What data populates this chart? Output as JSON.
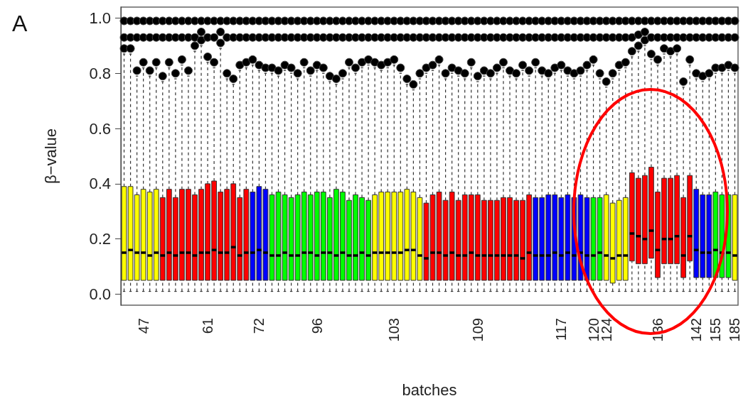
{
  "chart_data": {
    "type": "box",
    "title": "A",
    "ylabel": "β−value",
    "xlabel": "batches",
    "categories": [
      null,
      null,
      null,
      "47",
      null,
      null,
      null,
      null,
      null,
      null,
      null,
      null,
      null,
      "61",
      null,
      null,
      null,
      null,
      null,
      null,
      null,
      "72",
      null,
      null,
      null,
      null,
      null,
      null,
      null,
      null,
      "96",
      null,
      null,
      null,
      null,
      null,
      null,
      null,
      null,
      null,
      null,
      null,
      "103",
      null,
      null,
      null,
      null,
      null,
      null,
      null,
      null,
      null,
      null,
      null,
      null,
      "109",
      null,
      null,
      null,
      null,
      null,
      null,
      null,
      null,
      null,
      null,
      null,
      null,
      "117",
      null,
      null,
      null,
      null,
      "120",
      null,
      "124",
      null,
      null,
      null,
      null,
      null,
      null,
      null,
      "136",
      null,
      null,
      null,
      null,
      null,
      "142",
      null,
      null,
      "155",
      null,
      null,
      "185"
    ],
    "ylim": [
      -0.04,
      1.04
    ],
    "yticks": [
      {
        "value": 0,
        "label": "0.0"
      },
      {
        "value": 0.2,
        "label": "0.2"
      },
      {
        "value": 0.4,
        "label": "0.4"
      },
      {
        "value": 0.6,
        "label": "0.6"
      },
      {
        "value": 0.8,
        "label": "0.8"
      },
      {
        "value": 1,
        "label": "1.0"
      }
    ],
    "grid": false,
    "marker": "circle",
    "colors": [
      "#ffff00",
      "#ffff00",
      "#ffff00",
      "#ffff00",
      "#ffff00",
      "#ffff00",
      "#ff0000",
      "#ff0000",
      "#ff0000",
      "#ff0000",
      "#ff0000",
      "#ff0000",
      "#ff0000",
      "#ff0000",
      "#ff0000",
      "#ff0000",
      "#ff0000",
      "#ff0000",
      "#ff0000",
      "#ff0000",
      "#0000ff",
      "#0000ff",
      "#0000ff",
      "#00ff00",
      "#00ff00",
      "#00ff00",
      "#00ff00",
      "#00ff00",
      "#00ff00",
      "#00ff00",
      "#00ff00",
      "#00ff00",
      "#00ff00",
      "#00ff00",
      "#00ff00",
      "#00ff00",
      "#00ff00",
      "#00ff00",
      "#00ff00",
      "#ffff00",
      "#ffff00",
      "#ffff00",
      "#ffff00",
      "#ffff00",
      "#ffff00",
      "#ffff00",
      "#ffff00",
      "#ff0000",
      "#ff0000",
      "#ff0000",
      "#ff0000",
      "#ff0000",
      "#ff0000",
      "#ff0000",
      "#ff0000",
      "#ff0000",
      "#ff0000",
      "#ff0000",
      "#ff0000",
      "#ff0000",
      "#ff0000",
      "#ff0000",
      "#ff0000",
      "#ff0000",
      "#0000ff",
      "#0000ff",
      "#0000ff",
      "#0000ff",
      "#0000ff",
      "#0000ff",
      "#0000ff",
      "#0000ff",
      "#0000ff",
      "#00ff00",
      "#00ff00",
      "#ffff00",
      "#ffff00",
      "#ffff00",
      "#ffff00",
      "#ff0000",
      "#ff0000",
      "#ff0000",
      "#ff0000",
      "#ff0000",
      "#ff0000",
      "#ff0000",
      "#ff0000",
      "#ff0000",
      "#ff0000",
      "#0000ff",
      "#0000ff",
      "#0000ff",
      "#00ff00",
      "#00ff00",
      "#00ff00",
      "#ffff00"
    ],
    "boxes": [
      {
        "low": 0.01,
        "q1": 0.05,
        "median": 0.15,
        "q3": 0.39,
        "high": 0.87,
        "outliers": [
          0.89,
          0.93,
          0.99
        ]
      },
      {
        "low": 0.01,
        "q1": 0.05,
        "median": 0.16,
        "q3": 0.39,
        "high": 0.87,
        "outliers": [
          0.89,
          0.93,
          0.99
        ]
      },
      {
        "low": 0.01,
        "q1": 0.05,
        "median": 0.15,
        "q3": 0.36,
        "high": 0.79,
        "outliers": [
          0.81,
          0.93,
          0.99
        ]
      },
      {
        "low": 0.01,
        "q1": 0.05,
        "median": 0.15,
        "q3": 0.38,
        "high": 0.82,
        "outliers": [
          0.84,
          0.93,
          0.99
        ]
      },
      {
        "low": 0.01,
        "q1": 0.05,
        "median": 0.14,
        "q3": 0.37,
        "high": 0.79,
        "outliers": [
          0.81,
          0.93,
          0.99
        ]
      },
      {
        "low": 0.01,
        "q1": 0.05,
        "median": 0.15,
        "q3": 0.38,
        "high": 0.82,
        "outliers": [
          0.84,
          0.93,
          0.99
        ]
      },
      {
        "low": 0.01,
        "q1": 0.05,
        "median": 0.14,
        "q3": 0.35,
        "high": 0.77,
        "outliers": [
          0.79,
          0.93,
          0.99
        ]
      },
      {
        "low": 0.01,
        "q1": 0.05,
        "median": 0.15,
        "q3": 0.38,
        "high": 0.82,
        "outliers": [
          0.84,
          0.93,
          0.99
        ]
      },
      {
        "low": 0.01,
        "q1": 0.05,
        "median": 0.14,
        "q3": 0.35,
        "high": 0.78,
        "outliers": [
          0.8,
          0.93,
          0.99
        ]
      },
      {
        "low": 0.01,
        "q1": 0.05,
        "median": 0.15,
        "q3": 0.38,
        "high": 0.83,
        "outliers": [
          0.85,
          0.93,
          0.99
        ]
      },
      {
        "low": 0.01,
        "q1": 0.05,
        "median": 0.15,
        "q3": 0.38,
        "high": 0.79,
        "outliers": [
          0.81,
          0.93,
          0.99
        ]
      },
      {
        "low": 0.01,
        "q1": 0.05,
        "median": 0.14,
        "q3": 0.36,
        "high": 0.88,
        "outliers": [
          0.9,
          0.93,
          0.99
        ]
      },
      {
        "low": 0.01,
        "q1": 0.05,
        "median": 0.15,
        "q3": 0.38,
        "high": 0.9,
        "outliers": [
          0.92,
          0.95,
          0.99
        ]
      },
      {
        "low": 0.01,
        "q1": 0.05,
        "median": 0.15,
        "q3": 0.4,
        "high": 0.84,
        "outliers": [
          0.86,
          0.93,
          0.99
        ]
      },
      {
        "low": 0.01,
        "q1": 0.05,
        "median": 0.16,
        "q3": 0.41,
        "high": 0.82,
        "outliers": [
          0.84,
          0.93,
          0.99
        ]
      },
      {
        "low": 0.01,
        "q1": 0.05,
        "median": 0.15,
        "q3": 0.37,
        "high": 0.89,
        "outliers": [
          0.91,
          0.95,
          0.99
        ]
      },
      {
        "low": 0.01,
        "q1": 0.05,
        "median": 0.15,
        "q3": 0.38,
        "high": 0.78,
        "outliers": [
          0.8,
          0.93,
          0.99
        ]
      },
      {
        "low": 0.01,
        "q1": 0.05,
        "median": 0.17,
        "q3": 0.4,
        "high": 0.76,
        "outliers": [
          0.78,
          0.93,
          0.99
        ]
      },
      {
        "low": 0.01,
        "q1": 0.05,
        "median": 0.14,
        "q3": 0.35,
        "high": 0.81,
        "outliers": [
          0.83,
          0.93,
          0.99
        ]
      },
      {
        "low": 0.01,
        "q1": 0.05,
        "median": 0.15,
        "q3": 0.38,
        "high": 0.82,
        "outliers": [
          0.84,
          0.93,
          0.99
        ]
      },
      {
        "low": 0.01,
        "q1": 0.05,
        "median": 0.15,
        "q3": 0.37,
        "high": 0.83,
        "outliers": [
          0.85,
          0.93,
          0.99
        ]
      },
      {
        "low": 0.01,
        "q1": 0.05,
        "median": 0.16,
        "q3": 0.39,
        "high": 0.81,
        "outliers": [
          0.83,
          0.93,
          0.99
        ]
      },
      {
        "low": 0.01,
        "q1": 0.05,
        "median": 0.15,
        "q3": 0.38,
        "high": 0.8,
        "outliers": [
          0.82,
          0.93,
          0.99
        ]
      },
      {
        "low": 0.01,
        "q1": 0.05,
        "median": 0.14,
        "q3": 0.36,
        "high": 0.8,
        "outliers": [
          0.82,
          0.93,
          0.99
        ]
      },
      {
        "low": 0.01,
        "q1": 0.05,
        "median": 0.14,
        "q3": 0.37,
        "high": 0.79,
        "outliers": [
          0.81,
          0.93,
          0.99
        ]
      },
      {
        "low": 0.01,
        "q1": 0.05,
        "median": 0.15,
        "q3": 0.36,
        "high": 0.81,
        "outliers": [
          0.83,
          0.93,
          0.99
        ]
      },
      {
        "low": 0.01,
        "q1": 0.05,
        "median": 0.14,
        "q3": 0.35,
        "high": 0.8,
        "outliers": [
          0.82,
          0.93,
          0.99
        ]
      },
      {
        "low": 0.01,
        "q1": 0.05,
        "median": 0.14,
        "q3": 0.36,
        "high": 0.78,
        "outliers": [
          0.8,
          0.93,
          0.99
        ]
      },
      {
        "low": 0.01,
        "q1": 0.05,
        "median": 0.15,
        "q3": 0.37,
        "high": 0.82,
        "outliers": [
          0.84,
          0.93,
          0.99
        ]
      },
      {
        "low": 0.01,
        "q1": 0.05,
        "median": 0.15,
        "q3": 0.36,
        "high": 0.79,
        "outliers": [
          0.81,
          0.93,
          0.99
        ]
      },
      {
        "low": 0.01,
        "q1": 0.05,
        "median": 0.14,
        "q3": 0.37,
        "high": 0.81,
        "outliers": [
          0.83,
          0.93,
          0.99
        ]
      },
      {
        "low": 0.01,
        "q1": 0.05,
        "median": 0.15,
        "q3": 0.37,
        "high": 0.8,
        "outliers": [
          0.82,
          0.93,
          0.99
        ]
      },
      {
        "low": 0.01,
        "q1": 0.05,
        "median": 0.15,
        "q3": 0.35,
        "high": 0.77,
        "outliers": [
          0.79,
          0.93,
          0.99
        ]
      },
      {
        "low": 0.01,
        "q1": 0.05,
        "median": 0.14,
        "q3": 0.38,
        "high": 0.76,
        "outliers": [
          0.78,
          0.93,
          0.99
        ]
      },
      {
        "low": 0.01,
        "q1": 0.05,
        "median": 0.15,
        "q3": 0.37,
        "high": 0.78,
        "outliers": [
          0.8,
          0.93,
          0.99
        ]
      },
      {
        "low": 0.01,
        "q1": 0.05,
        "median": 0.14,
        "q3": 0.34,
        "high": 0.82,
        "outliers": [
          0.84,
          0.93,
          0.99
        ]
      },
      {
        "low": 0.01,
        "q1": 0.05,
        "median": 0.14,
        "q3": 0.36,
        "high": 0.8,
        "outliers": [
          0.82,
          0.93,
          0.99
        ]
      },
      {
        "low": 0.01,
        "q1": 0.05,
        "median": 0.15,
        "q3": 0.35,
        "high": 0.82,
        "outliers": [
          0.84,
          0.93,
          0.99
        ]
      },
      {
        "low": 0.01,
        "q1": 0.05,
        "median": 0.14,
        "q3": 0.34,
        "high": 0.83,
        "outliers": [
          0.85,
          0.93,
          0.99
        ]
      },
      {
        "low": 0.01,
        "q1": 0.05,
        "median": 0.15,
        "q3": 0.36,
        "high": 0.82,
        "outliers": [
          0.84,
          0.93,
          0.99
        ]
      },
      {
        "low": 0.01,
        "q1": 0.05,
        "median": 0.15,
        "q3": 0.37,
        "high": 0.81,
        "outliers": [
          0.83,
          0.93,
          0.99
        ]
      },
      {
        "low": 0.01,
        "q1": 0.05,
        "median": 0.15,
        "q3": 0.37,
        "high": 0.82,
        "outliers": [
          0.84,
          0.93,
          0.99
        ]
      },
      {
        "low": 0.01,
        "q1": 0.05,
        "median": 0.15,
        "q3": 0.37,
        "high": 0.83,
        "outliers": [
          0.85,
          0.93,
          0.99
        ]
      },
      {
        "low": 0.01,
        "q1": 0.05,
        "median": 0.15,
        "q3": 0.37,
        "high": 0.8,
        "outliers": [
          0.82,
          0.93,
          0.99
        ]
      },
      {
        "low": 0.01,
        "q1": 0.05,
        "median": 0.16,
        "q3": 0.38,
        "high": 0.76,
        "outliers": [
          0.78,
          0.93,
          0.99
        ]
      },
      {
        "low": 0.01,
        "q1": 0.05,
        "median": 0.16,
        "q3": 0.37,
        "high": 0.74,
        "outliers": [
          0.76,
          0.93,
          0.99
        ]
      },
      {
        "low": 0.01,
        "q1": 0.05,
        "median": 0.14,
        "q3": 0.35,
        "high": 0.78,
        "outliers": [
          0.8,
          0.93,
          0.99
        ]
      },
      {
        "low": 0.01,
        "q1": 0.05,
        "median": 0.13,
        "q3": 0.33,
        "high": 0.8,
        "outliers": [
          0.82,
          0.93,
          0.99
        ]
      },
      {
        "low": 0.01,
        "q1": 0.05,
        "median": 0.15,
        "q3": 0.36,
        "high": 0.81,
        "outliers": [
          0.83,
          0.93,
          0.99
        ]
      },
      {
        "low": 0.01,
        "q1": 0.05,
        "median": 0.15,
        "q3": 0.37,
        "high": 0.83,
        "outliers": [
          0.85,
          0.93,
          0.99
        ]
      },
      {
        "low": 0.01,
        "q1": 0.05,
        "median": 0.14,
        "q3": 0.34,
        "high": 0.78,
        "outliers": [
          0.8,
          0.93,
          0.99
        ]
      },
      {
        "low": 0.01,
        "q1": 0.05,
        "median": 0.15,
        "q3": 0.37,
        "high": 0.8,
        "outliers": [
          0.82,
          0.93,
          0.99
        ]
      },
      {
        "low": 0.01,
        "q1": 0.05,
        "median": 0.14,
        "q3": 0.34,
        "high": 0.79,
        "outliers": [
          0.81,
          0.93,
          0.99
        ]
      },
      {
        "low": 0.01,
        "q1": 0.05,
        "median": 0.14,
        "q3": 0.36,
        "high": 0.78,
        "outliers": [
          0.8,
          0.93,
          0.99
        ]
      },
      {
        "low": 0.01,
        "q1": 0.05,
        "median": 0.15,
        "q3": 0.36,
        "high": 0.82,
        "outliers": [
          0.84,
          0.93,
          0.99
        ]
      },
      {
        "low": 0.01,
        "q1": 0.05,
        "median": 0.14,
        "q3": 0.36,
        "high": 0.77,
        "outliers": [
          0.79,
          0.93,
          0.99
        ]
      },
      {
        "low": 0.01,
        "q1": 0.05,
        "median": 0.14,
        "q3": 0.34,
        "high": 0.79,
        "outliers": [
          0.81,
          0.93,
          0.99
        ]
      },
      {
        "low": 0.01,
        "q1": 0.05,
        "median": 0.14,
        "q3": 0.34,
        "high": 0.78,
        "outliers": [
          0.8,
          0.93,
          0.99
        ]
      },
      {
        "low": 0.01,
        "q1": 0.05,
        "median": 0.14,
        "q3": 0.34,
        "high": 0.8,
        "outliers": [
          0.82,
          0.93,
          0.99
        ]
      },
      {
        "low": 0.01,
        "q1": 0.05,
        "median": 0.14,
        "q3": 0.35,
        "high": 0.82,
        "outliers": [
          0.84,
          0.93,
          0.99
        ]
      },
      {
        "low": 0.01,
        "q1": 0.05,
        "median": 0.14,
        "q3": 0.35,
        "high": 0.79,
        "outliers": [
          0.81,
          0.93,
          0.99
        ]
      },
      {
        "low": 0.01,
        "q1": 0.05,
        "median": 0.14,
        "q3": 0.34,
        "high": 0.78,
        "outliers": [
          0.8,
          0.93,
          0.99
        ]
      },
      {
        "low": 0.01,
        "q1": 0.05,
        "median": 0.13,
        "q3": 0.34,
        "high": 0.81,
        "outliers": [
          0.83,
          0.93,
          0.99
        ]
      },
      {
        "low": 0.01,
        "q1": 0.05,
        "median": 0.15,
        "q3": 0.36,
        "high": 0.79,
        "outliers": [
          0.81,
          0.93,
          0.99
        ]
      },
      {
        "low": 0.01,
        "q1": 0.05,
        "median": 0.14,
        "q3": 0.35,
        "high": 0.82,
        "outliers": [
          0.84,
          0.93,
          0.99
        ]
      },
      {
        "low": 0.01,
        "q1": 0.05,
        "median": 0.14,
        "q3": 0.35,
        "high": 0.79,
        "outliers": [
          0.81,
          0.93,
          0.99
        ]
      },
      {
        "low": 0.01,
        "q1": 0.05,
        "median": 0.14,
        "q3": 0.36,
        "high": 0.78,
        "outliers": [
          0.8,
          0.93,
          0.99
        ]
      },
      {
        "low": 0.01,
        "q1": 0.05,
        "median": 0.15,
        "q3": 0.36,
        "high": 0.8,
        "outliers": [
          0.82,
          0.93,
          0.99
        ]
      },
      {
        "low": 0.01,
        "q1": 0.05,
        "median": 0.14,
        "q3": 0.35,
        "high": 0.81,
        "outliers": [
          0.83,
          0.93,
          0.99
        ]
      },
      {
        "low": 0.01,
        "q1": 0.05,
        "median": 0.15,
        "q3": 0.36,
        "high": 0.79,
        "outliers": [
          0.81,
          0.93,
          0.99
        ]
      },
      {
        "low": 0.01,
        "q1": 0.05,
        "median": 0.14,
        "q3": 0.35,
        "high": 0.78,
        "outliers": [
          0.8,
          0.93,
          0.99
        ]
      },
      {
        "low": 0.01,
        "q1": 0.05,
        "median": 0.15,
        "q3": 0.36,
        "high": 0.79,
        "outliers": [
          0.81,
          0.93,
          0.99
        ]
      },
      {
        "low": 0.01,
        "q1": 0.05,
        "median": 0.14,
        "q3": 0.35,
        "high": 0.81,
        "outliers": [
          0.83,
          0.93,
          0.99
        ]
      },
      {
        "low": 0.01,
        "q1": 0.05,
        "median": 0.14,
        "q3": 0.35,
        "high": 0.83,
        "outliers": [
          0.85,
          0.93,
          0.99
        ]
      },
      {
        "low": 0.01,
        "q1": 0.05,
        "median": 0.15,
        "q3": 0.35,
        "high": 0.78,
        "outliers": [
          0.8,
          0.93,
          0.99
        ]
      },
      {
        "low": 0.01,
        "q1": 0.05,
        "median": 0.14,
        "q3": 0.36,
        "high": 0.75,
        "outliers": [
          0.77,
          0.93,
          0.99
        ]
      },
      {
        "low": 0.01,
        "q1": 0.04,
        "median": 0.13,
        "q3": 0.33,
        "high": 0.78,
        "outliers": [
          0.8,
          0.93,
          0.99
        ]
      },
      {
        "low": 0.01,
        "q1": 0.05,
        "median": 0.14,
        "q3": 0.34,
        "high": 0.81,
        "outliers": [
          0.83,
          0.93,
          0.99
        ]
      },
      {
        "low": 0.01,
        "q1": 0.05,
        "median": 0.14,
        "q3": 0.35,
        "high": 0.82,
        "outliers": [
          0.84,
          0.93,
          0.99
        ]
      },
      {
        "low": 0.01,
        "q1": 0.12,
        "median": 0.22,
        "q3": 0.44,
        "high": 0.86,
        "outliers": [
          0.88,
          0.93,
          0.99
        ]
      },
      {
        "low": 0.01,
        "q1": 0.11,
        "median": 0.21,
        "q3": 0.42,
        "high": 0.88,
        "outliers": [
          0.9,
          0.94,
          0.99
        ]
      },
      {
        "low": 0.01,
        "q1": 0.11,
        "median": 0.2,
        "q3": 0.43,
        "high": 0.9,
        "outliers": [
          0.92,
          0.95,
          0.99
        ]
      },
      {
        "low": 0.01,
        "q1": 0.13,
        "median": 0.23,
        "q3": 0.46,
        "high": 0.85,
        "outliers": [
          0.87,
          0.93,
          0.99
        ]
      },
      {
        "low": 0.01,
        "q1": 0.06,
        "median": 0.16,
        "q3": 0.37,
        "high": 0.83,
        "outliers": [
          0.85,
          0.93,
          0.99
        ]
      },
      {
        "low": 0.01,
        "q1": 0.11,
        "median": 0.2,
        "q3": 0.42,
        "high": 0.87,
        "outliers": [
          0.89,
          0.93,
          0.99
        ]
      },
      {
        "low": 0.01,
        "q1": 0.11,
        "median": 0.2,
        "q3": 0.42,
        "high": 0.86,
        "outliers": [
          0.88,
          0.93,
          0.99
        ]
      },
      {
        "low": 0.01,
        "q1": 0.11,
        "median": 0.21,
        "q3": 0.43,
        "high": 0.87,
        "outliers": [
          0.89,
          0.93,
          0.99
        ]
      },
      {
        "low": 0.01,
        "q1": 0.06,
        "median": 0.14,
        "q3": 0.35,
        "high": 0.75,
        "outliers": [
          0.77,
          0.93,
          0.99
        ]
      },
      {
        "low": 0.01,
        "q1": 0.12,
        "median": 0.21,
        "q3": 0.43,
        "high": 0.83,
        "outliers": [
          0.85,
          0.93,
          0.99
        ]
      },
      {
        "low": 0.01,
        "q1": 0.06,
        "median": 0.16,
        "q3": 0.38,
        "high": 0.78,
        "outliers": [
          0.8,
          0.93,
          0.99
        ]
      },
      {
        "low": 0.01,
        "q1": 0.06,
        "median": 0.15,
        "q3": 0.36,
        "high": 0.77,
        "outliers": [
          0.79,
          0.93,
          0.99
        ]
      },
      {
        "low": 0.01,
        "q1": 0.06,
        "median": 0.15,
        "q3": 0.36,
        "high": 0.78,
        "outliers": [
          0.8,
          0.93,
          0.99
        ]
      },
      {
        "low": 0.01,
        "q1": 0.06,
        "median": 0.16,
        "q3": 0.37,
        "high": 0.8,
        "outliers": [
          0.82,
          0.93,
          0.99
        ]
      },
      {
        "low": 0.01,
        "q1": 0.06,
        "median": 0.15,
        "q3": 0.36,
        "high": 0.8,
        "outliers": [
          0.82,
          0.93,
          0.99
        ]
      },
      {
        "low": 0.01,
        "q1": 0.06,
        "median": 0.15,
        "q3": 0.36,
        "high": 0.81,
        "outliers": [
          0.83,
          0.93,
          0.99
        ]
      },
      {
        "low": 0.01,
        "q1": 0.05,
        "median": 0.14,
        "q3": 0.36,
        "high": 0.8,
        "outliers": [
          0.82,
          0.93,
          0.99
        ]
      }
    ]
  }
}
